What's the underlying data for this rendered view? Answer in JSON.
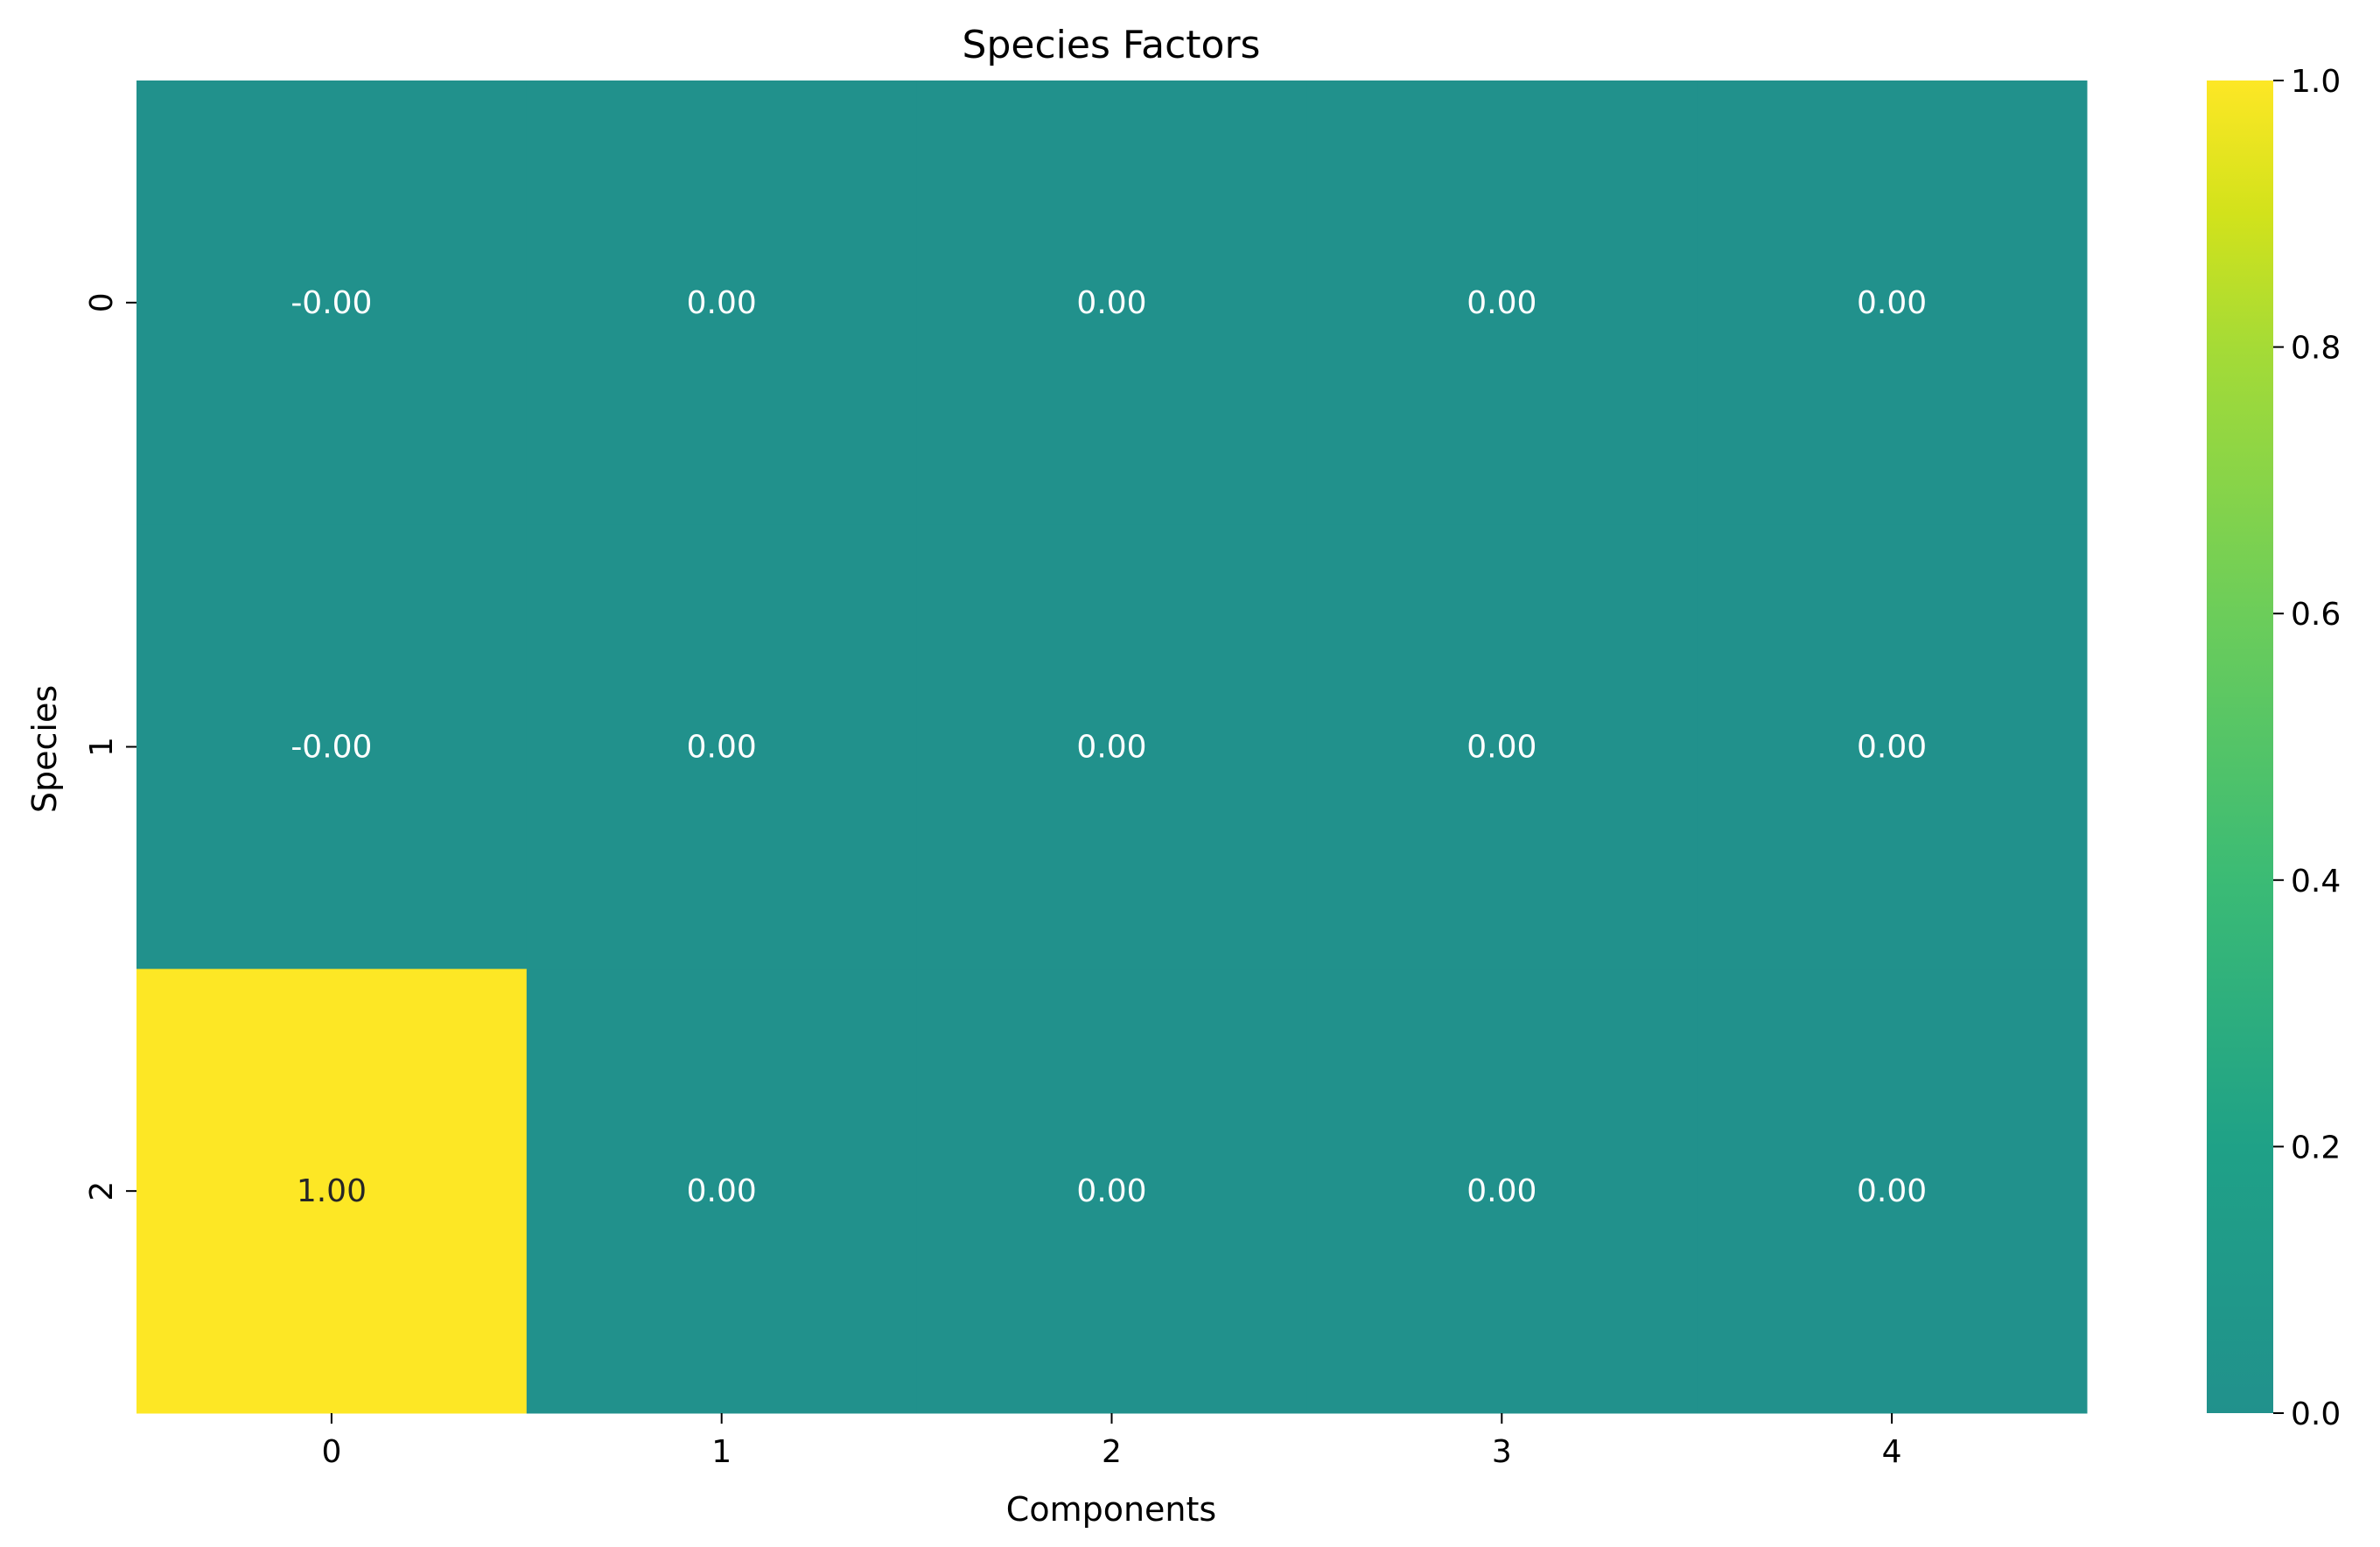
{
  "chart_data": {
    "type": "heatmap",
    "title": "Species Factors",
    "xlabel": "Components",
    "ylabel": "Species",
    "x_categories": [
      "0",
      "1",
      "2",
      "3",
      "4"
    ],
    "y_categories": [
      "0",
      "1",
      "2"
    ],
    "values": [
      [
        -0.0,
        0.0,
        0.0,
        0.0,
        0.0
      ],
      [
        -0.0,
        0.0,
        0.0,
        0.0,
        0.0
      ],
      [
        1.0,
        0.0,
        0.0,
        0.0,
        0.0
      ]
    ],
    "cell_labels": [
      [
        "-0.00",
        "0.00",
        "0.00",
        "0.00",
        "0.00"
      ],
      [
        "-0.00",
        "0.00",
        "0.00",
        "0.00",
        "0.00"
      ],
      [
        "1.00",
        "0.00",
        "0.00",
        "0.00",
        "0.00"
      ]
    ],
    "colormap": "viridis (centered at 0)",
    "colorbar": {
      "vmin": 0.0,
      "vmax": 1.0,
      "ticks": [
        "0.0",
        "0.2",
        "0.4",
        "0.6",
        "0.8",
        "1.0"
      ],
      "tick_values": [
        0.0,
        0.2,
        0.4,
        0.6,
        0.8,
        1.0
      ],
      "stops": [
        {
          "value": 0.0,
          "color": "#21918c"
        },
        {
          "value": 0.2,
          "color": "#1fa187"
        },
        {
          "value": 0.4,
          "color": "#3bbb75"
        },
        {
          "value": 0.6,
          "color": "#6ccd5a"
        },
        {
          "value": 0.8,
          "color": "#a5db36"
        },
        {
          "value": 0.9,
          "color": "#d2e21b"
        },
        {
          "value": 1.0,
          "color": "#fde725"
        }
      ]
    },
    "colors": {
      "low": "#21918c",
      "high": "#fde725",
      "text_on_low": "#ffffff",
      "text_on_high": "#262626"
    }
  }
}
